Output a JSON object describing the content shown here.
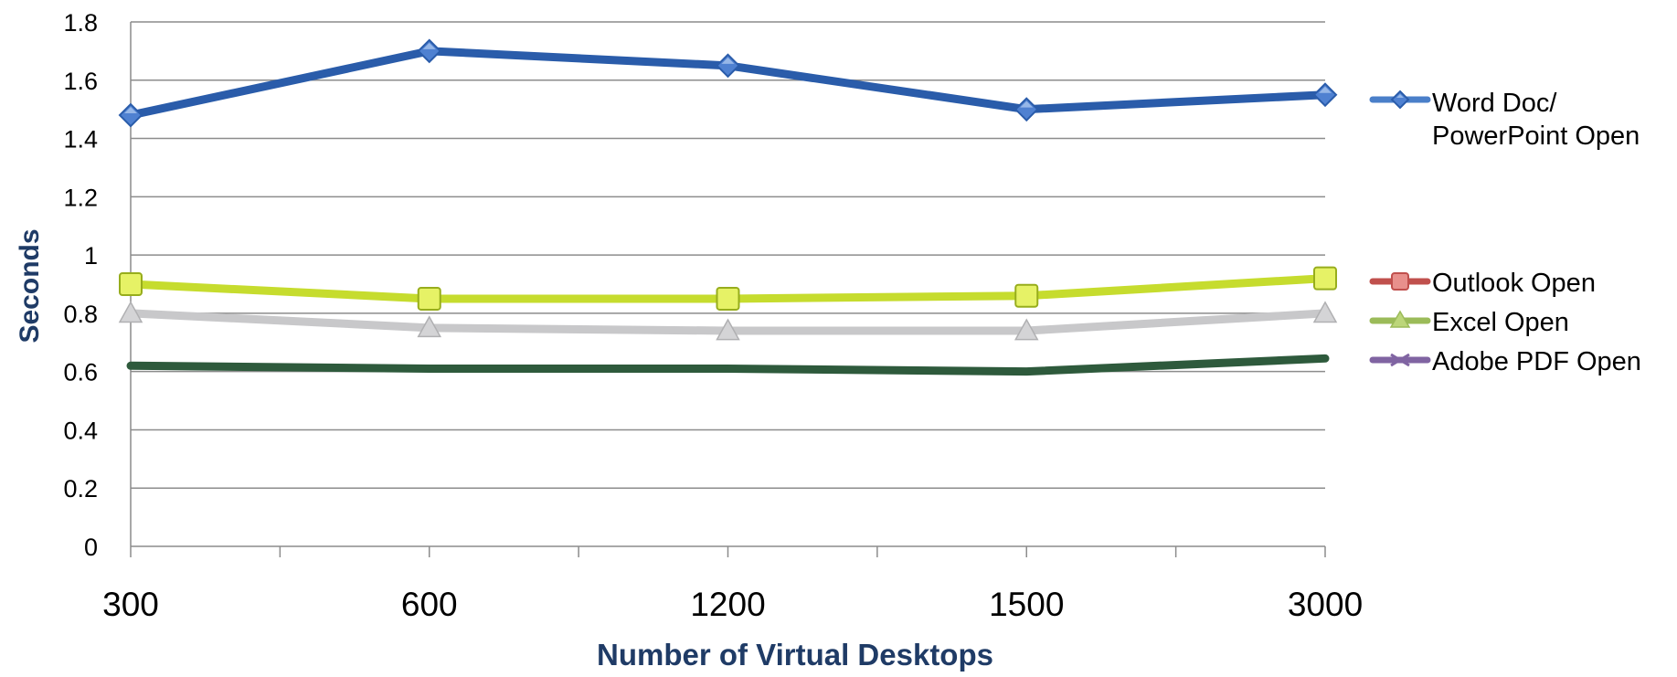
{
  "chart_data": {
    "type": "line",
    "xlabel": "Number of Virtual Desktops",
    "ylabel": "Seconds",
    "categories": [
      "300",
      "600",
      "1200",
      "1500",
      "3000"
    ],
    "ylim": [
      0,
      1.8
    ],
    "yticks": [
      "0",
      "0.2",
      "0.4",
      "0.6",
      "0.8",
      "1",
      "1.2",
      "1.4",
      "1.6",
      "1.8"
    ],
    "grid": true,
    "legend_position": "right",
    "series": [
      {
        "name": "Word Doc/ PowerPoint Open",
        "legend_lines": [
          "Word Doc/",
          "PowerPoint Open"
        ],
        "values": [
          1.48,
          1.7,
          1.65,
          1.5,
          1.55
        ],
        "color": "#2a5caa",
        "marker": "diamond",
        "legend_color": "#4a7fc9"
      },
      {
        "name": "Excel Open",
        "values": [
          0.9,
          0.85,
          0.85,
          0.86,
          0.92
        ],
        "color": "#c6dc2e",
        "marker": "square",
        "legend_color": "#9bbb59"
      },
      {
        "name": "",
        "values": [
          0.8,
          0.75,
          0.74,
          0.74,
          0.8
        ],
        "color": "#c8c8ca",
        "marker": "triangle"
      },
      {
        "name": "",
        "values": [
          0.62,
          0.61,
          0.61,
          0.6,
          0.645
        ],
        "color": "#2e5a3c",
        "marker": "none"
      }
    ],
    "legend": [
      {
        "label": "Outlook Open",
        "color": "#c0504d",
        "marker": "square"
      },
      {
        "label": "Excel Open",
        "color": "#9bbb59",
        "marker": "triangle"
      },
      {
        "label": "Adobe PDF Open",
        "color": "#8064a2",
        "marker": "x"
      }
    ]
  }
}
